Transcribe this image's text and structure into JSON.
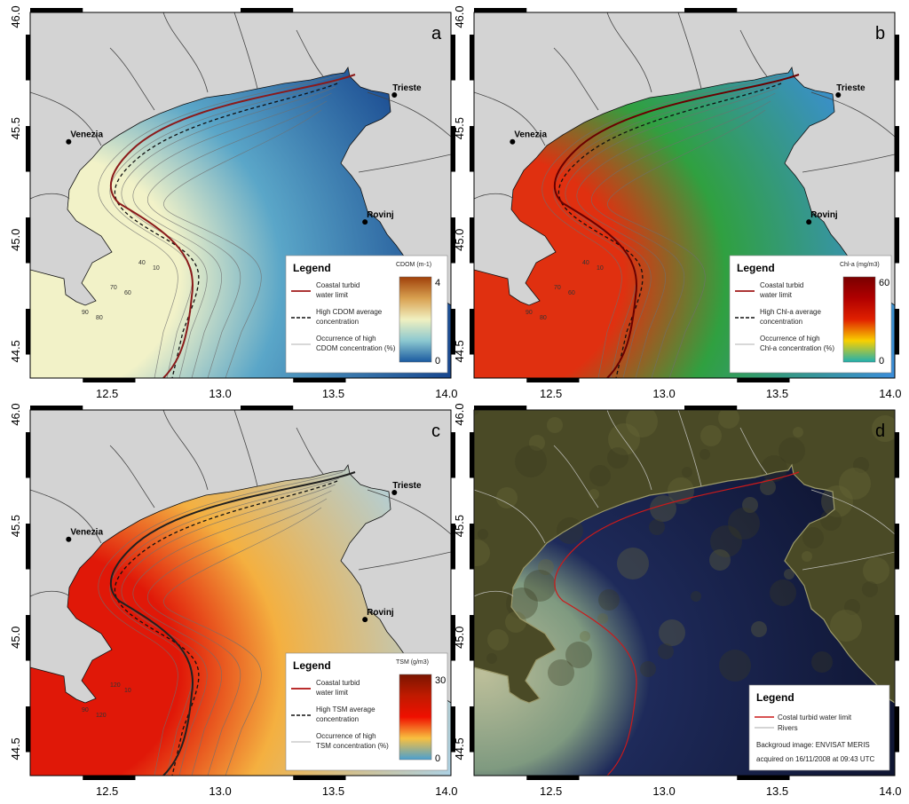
{
  "axes": {
    "lon_ticks": [
      "12.5",
      "13.0",
      "13.5",
      "14.0"
    ],
    "lat_ticks": [
      "44.5",
      "45.0",
      "45.5",
      "46.0"
    ]
  },
  "cities": [
    {
      "name": "Trieste",
      "lon": 13.77,
      "lat": 45.65
    },
    {
      "name": "Venezia",
      "lon": 12.33,
      "lat": 45.44
    },
    {
      "name": "Rovinj",
      "lon": 13.64,
      "lat": 45.08
    }
  ],
  "panels": [
    {
      "letter": "a",
      "colors": {
        "high": "#f2f2c8",
        "mid": "#5aa6c8",
        "low": "#123f8a",
        "turbid_line": "#8b1a1a"
      },
      "legend": {
        "title": "Legend",
        "items": [
          "Coastal turbid water limit",
          "High CDOM average concentration",
          "Occurrence of high CDOM concentration (%)"
        ],
        "colorbar": {
          "label": "CDOM (m-1)",
          "max": "4",
          "min": "0",
          "stops": [
            "#a0400a",
            "#d8a050",
            "#f0f0c0",
            "#8cc8d0",
            "#1a5aa0"
          ]
        }
      },
      "contour_labels": [
        "90",
        "80",
        "70",
        "60",
        "40",
        "10"
      ]
    },
    {
      "letter": "b",
      "colors": {
        "high": "#e03010",
        "mid": "#30a040",
        "low": "#3c8ce6",
        "turbid_line": "#6a0000"
      },
      "legend": {
        "title": "Legend",
        "items": [
          "Coastal turbid water limit",
          "High Chl-a average concentration",
          "Occurrence of high Chl-a concentration (%)"
        ],
        "colorbar": {
          "label": "Chl-a (mg/m3)",
          "max": "60",
          "min": "0",
          "stops": [
            "#7a0000",
            "#b00000",
            "#e02000",
            "#f8d000",
            "#20b0b0"
          ]
        }
      },
      "contour_labels": [
        "90",
        "80",
        "70",
        "60",
        "40",
        "10"
      ]
    },
    {
      "letter": "c",
      "colors": {
        "high": "#e01808",
        "mid": "#f4b040",
        "low": "#a8d4f0",
        "turbid_line": "#202020"
      },
      "legend": {
        "title": "Legend",
        "items": [
          "Coastal turbid water limit",
          "High TSM average concentration",
          "Occurrence of high TSM concentration (%)"
        ],
        "colorbar": {
          "label": "TSM (g/m3)",
          "max": "30",
          "min": "0",
          "stops": [
            "#7a1500",
            "#c01a00",
            "#f01000",
            "#f8c040",
            "#4aa0d0"
          ]
        }
      },
      "contour_labels": [
        "90",
        "120",
        "120",
        "10"
      ]
    },
    {
      "letter": "d",
      "colors": {
        "high": "#bdbf9a",
        "mid": "#1e2a5a",
        "low": "#0e1430",
        "turbid_line": "#cc1a1a"
      },
      "legend": {
        "title": "Legend",
        "items": [
          "Costal turbid water limit",
          "Rivers",
          "Backgroud image: ENVISAT MERIS",
          "acquired on 16/11/2008 at 09:43 UTC"
        ]
      }
    }
  ]
}
